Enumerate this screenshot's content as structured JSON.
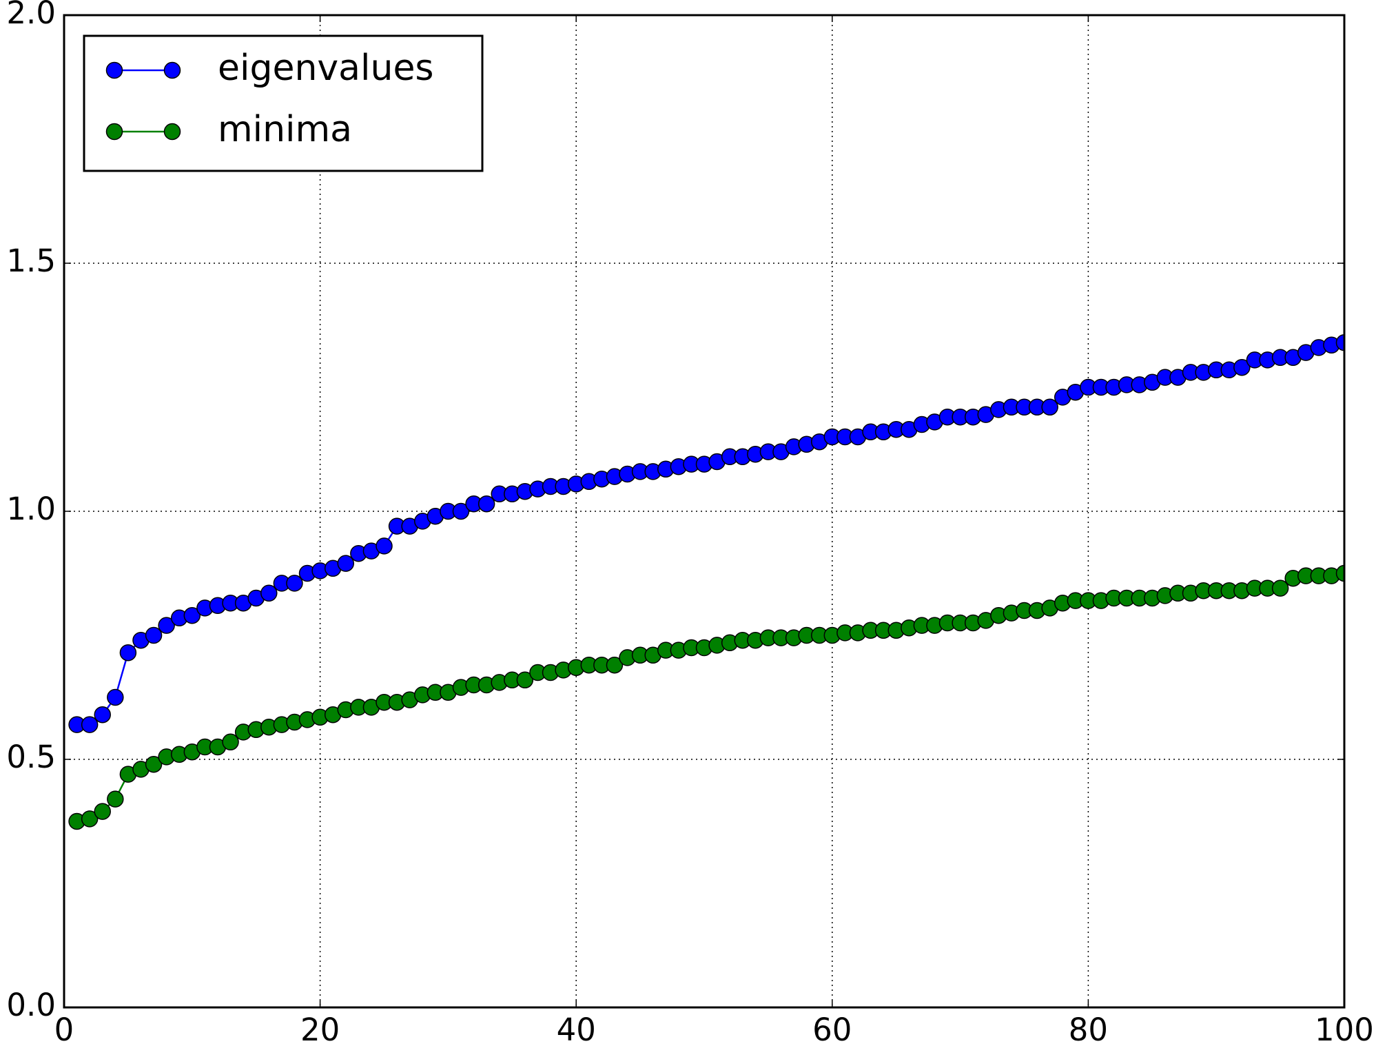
{
  "chart_data": {
    "type": "line",
    "x": [
      1,
      2,
      3,
      4,
      5,
      6,
      7,
      8,
      9,
      10,
      11,
      12,
      13,
      14,
      15,
      16,
      17,
      18,
      19,
      20,
      21,
      22,
      23,
      24,
      25,
      26,
      27,
      28,
      29,
      30,
      31,
      32,
      33,
      34,
      35,
      36,
      37,
      38,
      39,
      40,
      41,
      42,
      43,
      44,
      45,
      46,
      47,
      48,
      49,
      50,
      51,
      52,
      53,
      54,
      55,
      56,
      57,
      58,
      59,
      60,
      61,
      62,
      63,
      64,
      65,
      66,
      67,
      68,
      69,
      70,
      71,
      72,
      73,
      74,
      75,
      76,
      77,
      78,
      79,
      80,
      81,
      82,
      83,
      84,
      85,
      86,
      87,
      88,
      89,
      90,
      91,
      92,
      93,
      94,
      95,
      96,
      97,
      98,
      99,
      100
    ],
    "series": [
      {
        "name": "eigenvalues",
        "color": "#0000ff",
        "values": [
          0.57,
          0.57,
          0.59,
          0.625,
          0.715,
          0.74,
          0.75,
          0.77,
          0.785,
          0.79,
          0.805,
          0.81,
          0.815,
          0.815,
          0.825,
          0.835,
          0.855,
          0.855,
          0.875,
          0.88,
          0.885,
          0.895,
          0.915,
          0.92,
          0.93,
          0.97,
          0.97,
          0.98,
          0.99,
          1.0,
          1.0,
          1.015,
          1.015,
          1.035,
          1.035,
          1.04,
          1.045,
          1.05,
          1.05,
          1.055,
          1.06,
          1.065,
          1.07,
          1.075,
          1.08,
          1.08,
          1.085,
          1.09,
          1.095,
          1.095,
          1.1,
          1.11,
          1.11,
          1.115,
          1.12,
          1.12,
          1.13,
          1.135,
          1.14,
          1.15,
          1.15,
          1.15,
          1.16,
          1.16,
          1.165,
          1.165,
          1.175,
          1.18,
          1.19,
          1.19,
          1.19,
          1.195,
          1.205,
          1.21,
          1.21,
          1.21,
          1.21,
          1.23,
          1.24,
          1.25,
          1.25,
          1.25,
          1.255,
          1.255,
          1.26,
          1.27,
          1.27,
          1.28,
          1.28,
          1.285,
          1.285,
          1.29,
          1.305,
          1.305,
          1.31,
          1.31,
          1.32,
          1.33,
          1.335,
          1.34
        ]
      },
      {
        "name": "minima",
        "color": "#008000",
        "values": [
          0.375,
          0.38,
          0.395,
          0.42,
          0.47,
          0.48,
          0.49,
          0.505,
          0.51,
          0.515,
          0.525,
          0.525,
          0.535,
          0.555,
          0.56,
          0.565,
          0.57,
          0.575,
          0.58,
          0.585,
          0.59,
          0.6,
          0.605,
          0.605,
          0.615,
          0.615,
          0.62,
          0.63,
          0.635,
          0.635,
          0.645,
          0.65,
          0.65,
          0.655,
          0.66,
          0.66,
          0.675,
          0.675,
          0.68,
          0.685,
          0.69,
          0.69,
          0.69,
          0.705,
          0.71,
          0.71,
          0.72,
          0.72,
          0.725,
          0.725,
          0.73,
          0.735,
          0.74,
          0.74,
          0.745,
          0.745,
          0.745,
          0.75,
          0.75,
          0.75,
          0.755,
          0.755,
          0.76,
          0.76,
          0.76,
          0.765,
          0.77,
          0.77,
          0.775,
          0.775,
          0.775,
          0.78,
          0.79,
          0.795,
          0.8,
          0.8,
          0.805,
          0.815,
          0.82,
          0.82,
          0.82,
          0.825,
          0.825,
          0.825,
          0.825,
          0.83,
          0.835,
          0.835,
          0.84,
          0.84,
          0.84,
          0.84,
          0.845,
          0.845,
          0.845,
          0.865,
          0.87,
          0.87,
          0.87,
          0.875
        ]
      }
    ],
    "xlim": [
      0,
      100
    ],
    "xticks": [
      0,
      20,
      40,
      60,
      80,
      100
    ],
    "ylim": [
      0,
      2
    ],
    "yticks": [
      {
        "value": 0,
        "label": "0.0"
      },
      0.5,
      {
        "value": 1,
        "label": "1.0"
      },
      1.5,
      {
        "value": 2,
        "label": "2.0"
      }
    ],
    "grid": true,
    "legend": "upper-left",
    "marker": "circle"
  }
}
